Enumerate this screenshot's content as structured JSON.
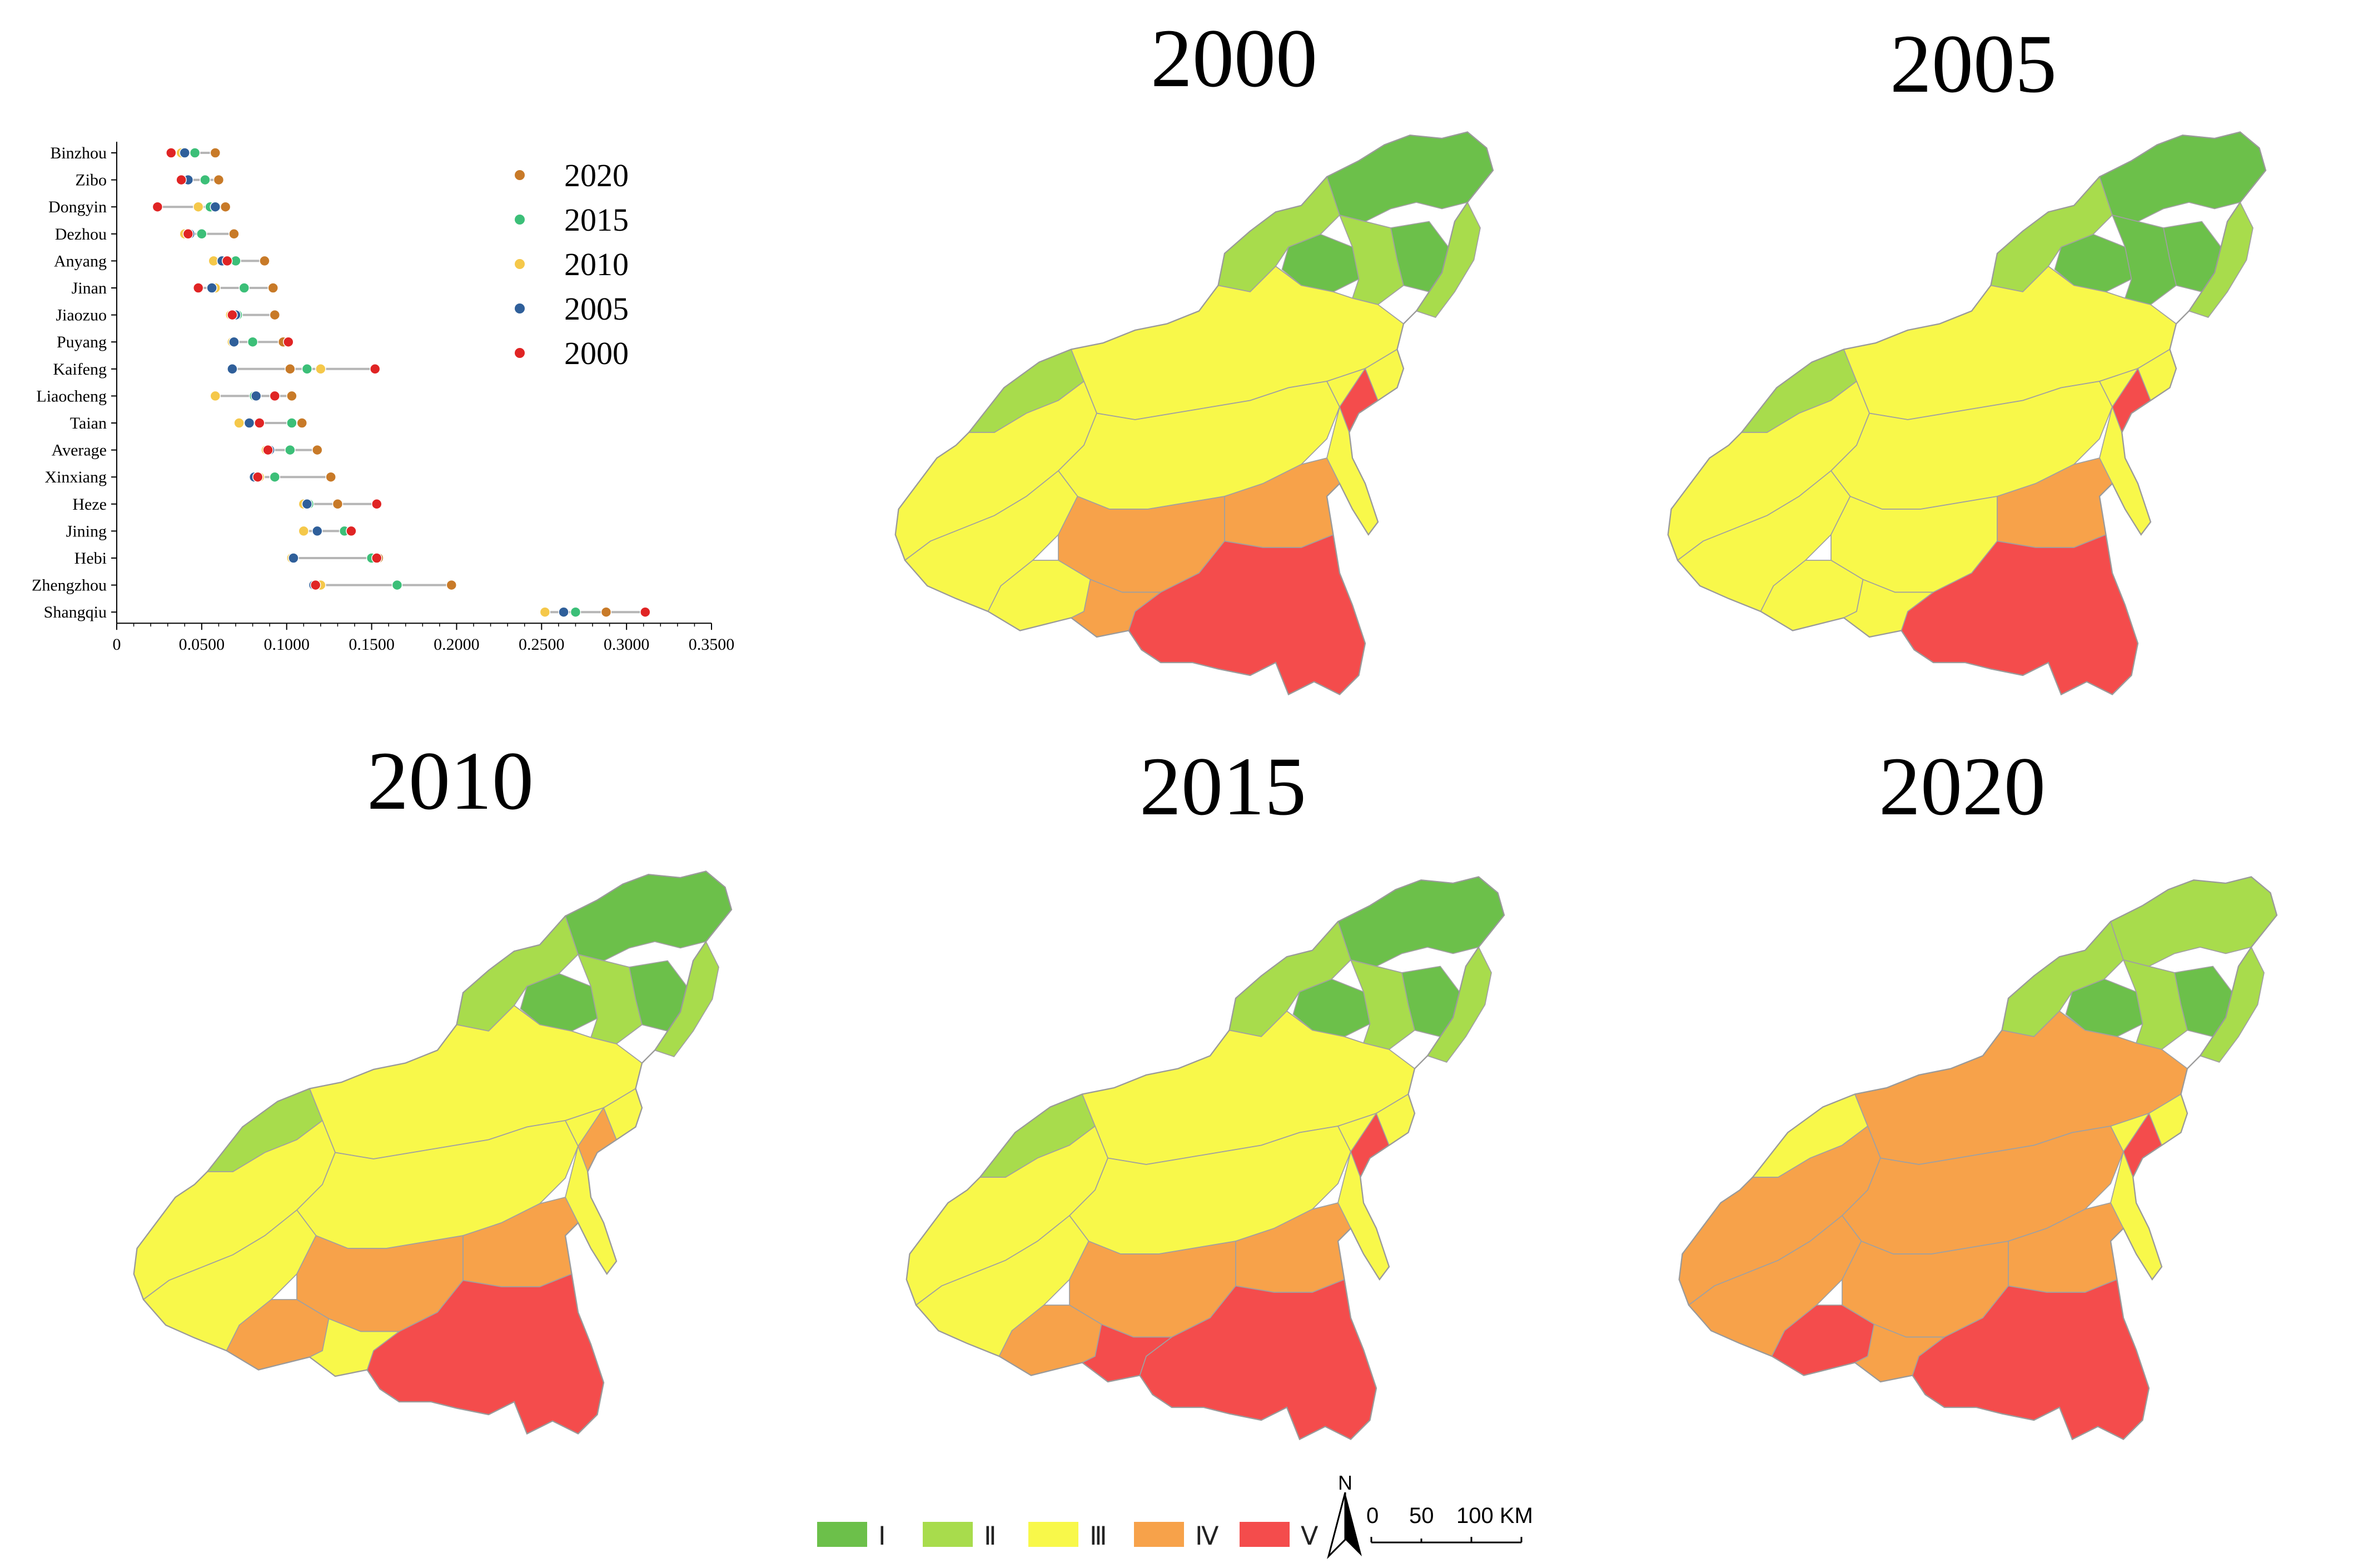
{
  "titles": [
    "2000",
    "2005",
    "2010",
    "2015",
    "2020"
  ],
  "classes": [
    {
      "label": "Ⅰ",
      "color": "#6cc04a"
    },
    {
      "label": "Ⅱ",
      "color": "#a8dc4c"
    },
    {
      "label": "Ⅲ",
      "color": "#f8f84a"
    },
    {
      "label": "Ⅳ",
      "color": "#f7a24a"
    },
    {
      "label": "Ⅴ",
      "color": "#f44c4c"
    }
  ],
  "north_label": "N",
  "scale": {
    "tick0": "0",
    "tick1": "50",
    "tick2": "100 KM"
  },
  "chart_data": {
    "type": "scatter",
    "cities": [
      "Binzhou",
      "Zibo",
      "Dongyin",
      "Dezhou",
      "Anyang",
      "Jinan",
      "Jiaozuo",
      "Puyang",
      "Kaifeng",
      "Liaocheng",
      "Taian",
      "Average",
      "Xinxiang",
      "Heze",
      "Jining",
      "Hebi",
      "Zhengzhou",
      "Shangqiu"
    ],
    "xlim": [
      0,
      0.35
    ],
    "xticks": [
      "0",
      "0.0500",
      "0.1000",
      "0.1500",
      "0.2000",
      "0.2500",
      "0.3000",
      "0.3500"
    ],
    "xtick_values": [
      0,
      0.05,
      0.1,
      0.15,
      0.2,
      0.25,
      0.3,
      0.35
    ],
    "series": [
      {
        "name": "2020",
        "color": "#c87a28",
        "values": [
          0.058,
          0.06,
          0.064,
          0.069,
          0.087,
          0.092,
          0.093,
          0.098,
          0.102,
          0.103,
          0.109,
          0.118,
          0.126,
          0.13,
          0.137,
          0.154,
          0.197,
          0.288
        ]
      },
      {
        "name": "2015",
        "color": "#3cbf78",
        "values": [
          0.046,
          0.052,
          0.055,
          0.05,
          0.07,
          0.075,
          0.071,
          0.08,
          0.112,
          0.081,
          0.103,
          0.102,
          0.093,
          0.113,
          0.134,
          0.15,
          0.165,
          0.27
        ]
      },
      {
        "name": "2010",
        "color": "#f5c84a",
        "values": [
          0.038,
          0.039,
          0.048,
          0.04,
          0.057,
          0.058,
          0.067,
          0.068,
          0.12,
          0.058,
          0.072,
          0.088,
          0.084,
          0.11,
          0.11,
          0.103,
          0.12,
          0.252
        ]
      },
      {
        "name": "2005",
        "color": "#2f5f9a",
        "values": [
          0.04,
          0.042,
          0.058,
          0.043,
          0.062,
          0.056,
          0.07,
          0.069,
          0.068,
          0.082,
          0.078,
          0.09,
          0.081,
          0.112,
          0.118,
          0.104,
          0.116,
          0.263
        ]
      },
      {
        "name": "2000",
        "color": "#e02424",
        "values": [
          0.032,
          0.038,
          0.024,
          0.042,
          0.065,
          0.048,
          0.068,
          0.101,
          0.152,
          0.093,
          0.084,
          0.089,
          0.083,
          0.153,
          0.138,
          0.153,
          0.117,
          0.311
        ]
      }
    ],
    "legend_position": "top-right"
  }
}
